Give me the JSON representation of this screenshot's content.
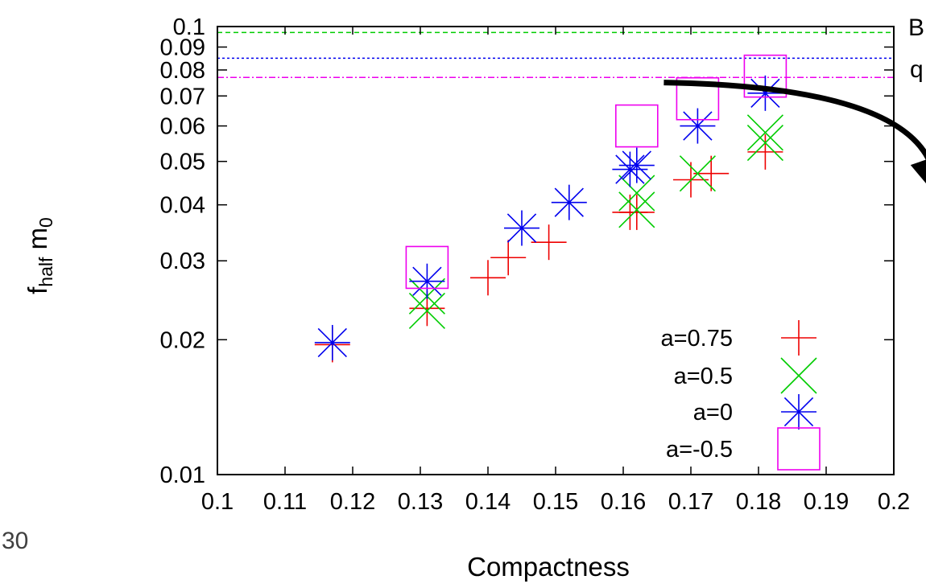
{
  "slide": {
    "page_number": "30",
    "cut_text_1": "B",
    "cut_text_2": "q"
  },
  "chart_data": {
    "type": "scatter",
    "xlabel": "Compactness",
    "ylabel": "f",
    "ylabel_sub": "half",
    "ylabel_tail": " m",
    "ylabel_tail_sub": "0",
    "x_scale": "linear",
    "y_scale": "log",
    "xlim": [
      0.1,
      0.2
    ],
    "ylim": [
      0.01,
      0.1
    ],
    "x_ticks": [
      "0.1",
      "0.11",
      "0.12",
      "0.13",
      "0.14",
      "0.15",
      "0.16",
      "0.17",
      "0.18",
      "0.19",
      "0.2"
    ],
    "x_tick_values": [
      0.1,
      0.11,
      0.12,
      0.13,
      0.14,
      0.15,
      0.16,
      0.17,
      0.18,
      0.19,
      0.2
    ],
    "y_ticks": [
      "0.01",
      "0.02",
      "0.03",
      "0.04",
      "0.05",
      "0.06",
      "0.07",
      "0.08",
      "0.09",
      "0.1"
    ],
    "y_tick_values": [
      0.01,
      0.02,
      0.03,
      0.04,
      0.05,
      0.06,
      0.07,
      0.08,
      0.09,
      0.1
    ],
    "grid": false,
    "legend_position": "bottom-right",
    "horizontal_lines": [
      {
        "y": 0.097,
        "color": "#00cc00",
        "style": "dashed"
      },
      {
        "y": 0.085,
        "color": "#0000ee",
        "style": "dotted"
      },
      {
        "y": 0.077,
        "color": "#ee00ee",
        "style": "dash-dot"
      }
    ],
    "arrow": {
      "from": [
        0.166,
        0.075
      ],
      "to": [
        0.207,
        0.043
      ],
      "color": "#000000"
    },
    "series": [
      {
        "name": "a=0.75",
        "marker": "plus",
        "color": "#ee0000",
        "points": [
          [
            0.117,
            0.0195
          ],
          [
            0.131,
            0.0235
          ],
          [
            0.14,
            0.0275
          ],
          [
            0.143,
            0.0305
          ],
          [
            0.149,
            0.033
          ],
          [
            0.161,
            0.0385
          ],
          [
            0.162,
            0.0385
          ],
          [
            0.17,
            0.0455
          ],
          [
            0.173,
            0.047
          ],
          [
            0.181,
            0.0525
          ]
        ]
      },
      {
        "name": "a=0.5",
        "marker": "cross",
        "color": "#00cc00",
        "points": [
          [
            0.131,
            0.0232
          ],
          [
            0.131,
            0.025
          ],
          [
            0.162,
            0.039
          ],
          [
            0.162,
            0.0425
          ],
          [
            0.171,
            0.047
          ],
          [
            0.181,
            0.055
          ],
          [
            0.181,
            0.058
          ]
        ]
      },
      {
        "name": "a=0",
        "marker": "asterisk",
        "color": "#0000ee",
        "points": [
          [
            0.117,
            0.0197
          ],
          [
            0.131,
            0.027
          ],
          [
            0.145,
            0.0355
          ],
          [
            0.152,
            0.0405
          ],
          [
            0.161,
            0.048
          ],
          [
            0.162,
            0.049
          ],
          [
            0.171,
            0.06
          ],
          [
            0.181,
            0.071
          ]
        ]
      },
      {
        "name": "a=-0.5",
        "marker": "square",
        "color": "#ee00ee",
        "points": [
          [
            0.131,
            0.029
          ],
          [
            0.162,
            0.06
          ],
          [
            0.171,
            0.069
          ],
          [
            0.181,
            0.0775
          ]
        ]
      }
    ]
  }
}
